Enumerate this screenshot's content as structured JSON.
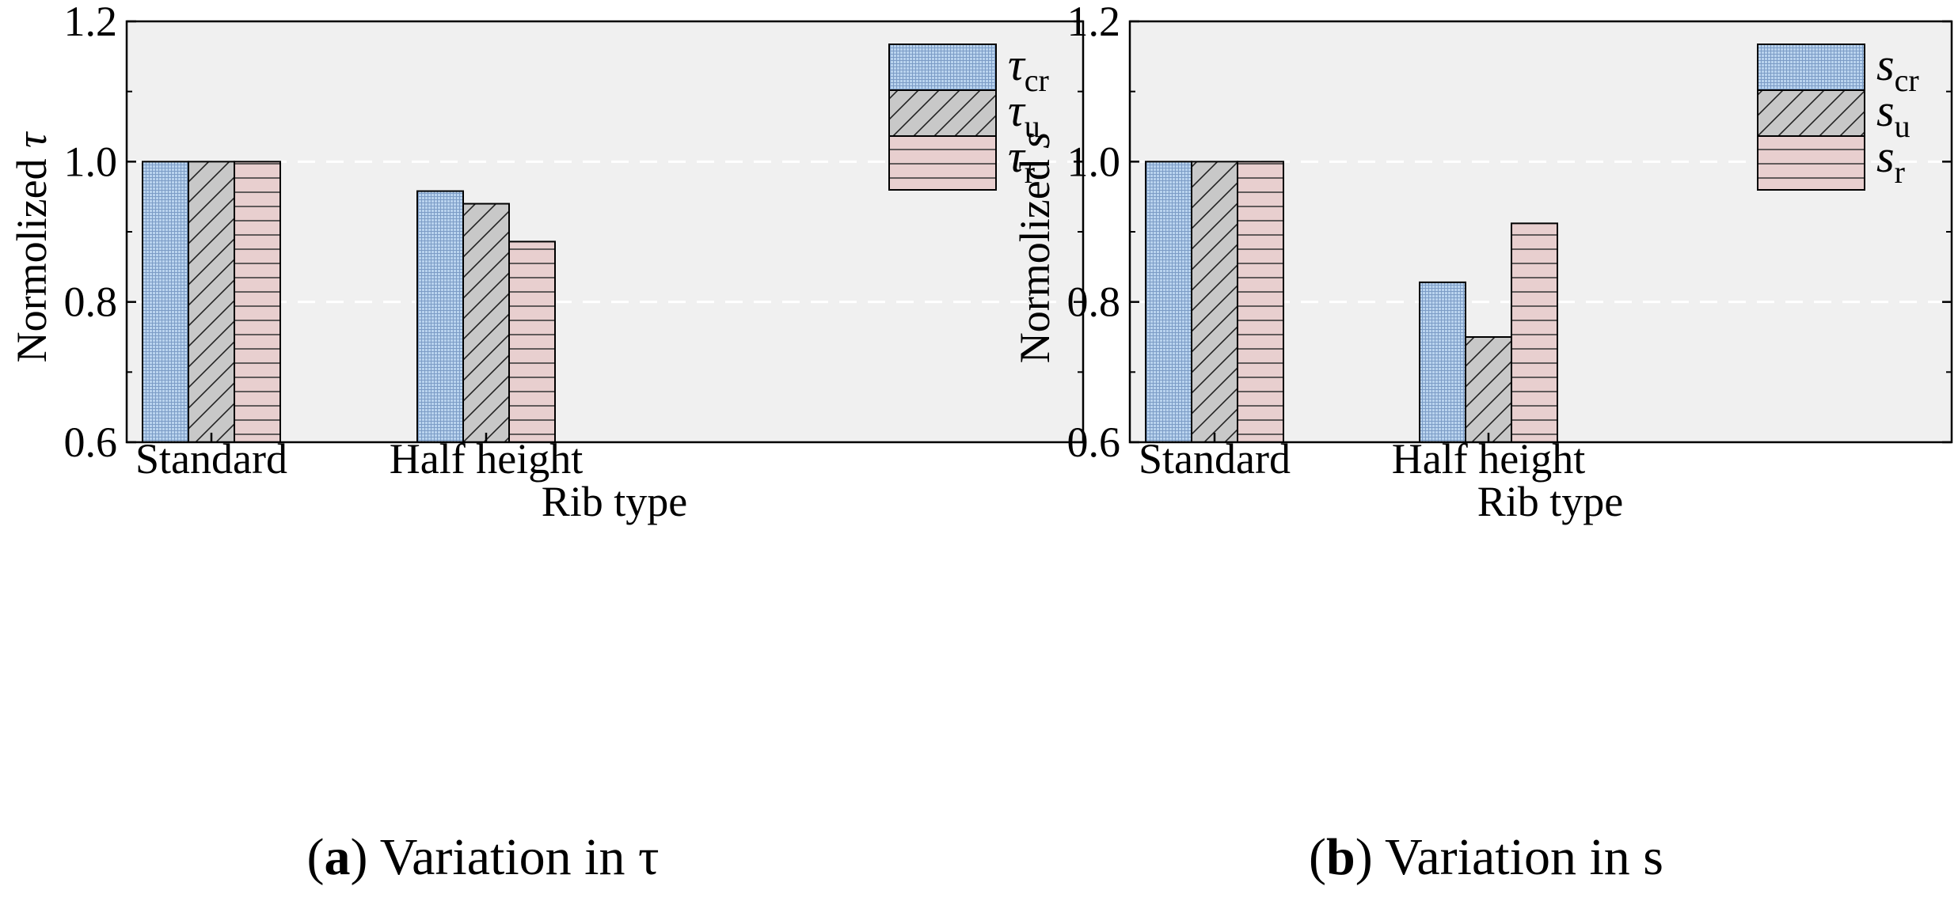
{
  "colors": {
    "plot_bg": "#f0f0f0",
    "grid": "#ffffff",
    "s1_fill": "#b9d3ee",
    "s1_pattern": "#4a6fa5",
    "s2_fill": "#c8c8c8",
    "s3_fill": "#e8cfcf",
    "outline": "#000000"
  },
  "chart_data": [
    {
      "type": "bar",
      "caption_label": "a",
      "caption_rest": "Variation in τ",
      "xlabel": "Rib type",
      "ylabel_prefix": "Normolized ",
      "ylabel_symbol": "τ",
      "categories": [
        "Standard",
        "Half height"
      ],
      "ylim": [
        0.6,
        1.2
      ],
      "yticks": [
        "0.6",
        "0.8",
        "1.0",
        "1.2"
      ],
      "grid_lines": [
        0.8,
        1.0
      ],
      "legend_position": "top-right",
      "series": [
        {
          "name": "τcr",
          "base": "τ",
          "sub": "cr",
          "pattern": "grid",
          "values": [
            1.0,
            0.958
          ]
        },
        {
          "name": "τu",
          "base": "τ",
          "sub": "u",
          "pattern": "diagonal",
          "values": [
            1.0,
            0.94
          ]
        },
        {
          "name": "τr",
          "base": "τ",
          "sub": "r",
          "pattern": "horizontal",
          "values": [
            1.0,
            0.886
          ]
        }
      ]
    },
    {
      "type": "bar",
      "caption_label": "b",
      "caption_rest": "Variation in s",
      "xlabel": "Rib type",
      "ylabel_prefix": "Normolized ",
      "ylabel_symbol": "s",
      "categories": [
        "Standard",
        "Half height"
      ],
      "ylim": [
        0.6,
        1.2
      ],
      "yticks": [
        "0.6",
        "0.8",
        "1.0",
        "1.2"
      ],
      "grid_lines": [
        0.8,
        1.0
      ],
      "legend_position": "top-right",
      "series": [
        {
          "name": "scr",
          "base": "s",
          "sub": "cr",
          "pattern": "grid",
          "values": [
            1.0,
            0.828
          ]
        },
        {
          "name": "su",
          "base": "s",
          "sub": "u",
          "pattern": "diagonal",
          "values": [
            1.0,
            0.75
          ]
        },
        {
          "name": "sr",
          "base": "s",
          "sub": "r",
          "pattern": "horizontal",
          "values": [
            1.0,
            0.912
          ]
        }
      ]
    }
  ]
}
